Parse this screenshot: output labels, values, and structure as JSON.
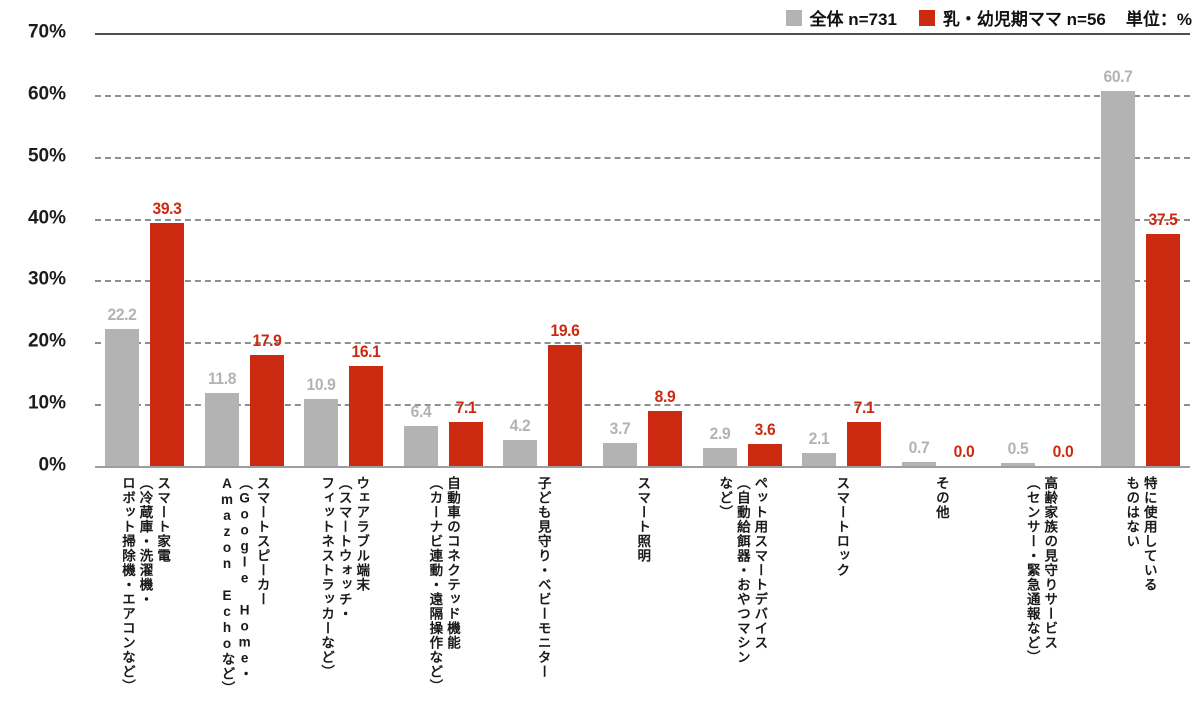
{
  "legend": {
    "total_label": "全体 n=731",
    "mama_label": "乳・幼児期ママ n=56",
    "unit_label": "単位：%"
  },
  "colors": {
    "total_series": "#b3b3b3",
    "mama_series": "#cc2a10",
    "grid": "#8f8f8f",
    "axis_text": "#1c1c1c"
  },
  "chart_data": {
    "type": "bar",
    "unit": "%",
    "ylim": [
      0,
      70
    ],
    "ytick_step": 10,
    "yticks": [
      "70%",
      "60%",
      "50%",
      "40%",
      "30%",
      "20%",
      "10%",
      "0%"
    ],
    "grid": "horizontal dashed, solid line at 70% and baseline at 0%",
    "legend_position": "top-right",
    "categories": [
      "スマート家電\n（冷蔵庫・洗濯機・\nロボット掃除機・エアコンなど）",
      "スマートスピーカー\n（Google Home・\nAmazon Echoなど）",
      "ウェアラブル端末\n（スマートウォッチ・\nフィットネストラッカーなど）",
      "自動車のコネクテッド機能\n（カーナビ連動・遠隔操作など）",
      "子ども見守り・ベビーモニター",
      "スマート照明",
      "ペット用スマートデバイス\n（自動給餌器・おやつマシン\nなど）",
      "スマートロック",
      "その他",
      "高齢家族の見守りサービス\n（センサー・緊急通報など）",
      "特に使用している\nものはない"
    ],
    "series": [
      {
        "name": "全体 n=731",
        "color": "#b3b3b3",
        "values": [
          22.2,
          11.8,
          10.9,
          6.4,
          4.2,
          3.7,
          2.9,
          2.1,
          0.7,
          0.5,
          60.7
        ]
      },
      {
        "name": "乳・幼児期ママ n=56",
        "color": "#cc2a10",
        "values": [
          39.3,
          17.9,
          16.1,
          7.1,
          19.6,
          8.9,
          3.6,
          7.1,
          0.0,
          0.0,
          37.5
        ]
      }
    ]
  }
}
